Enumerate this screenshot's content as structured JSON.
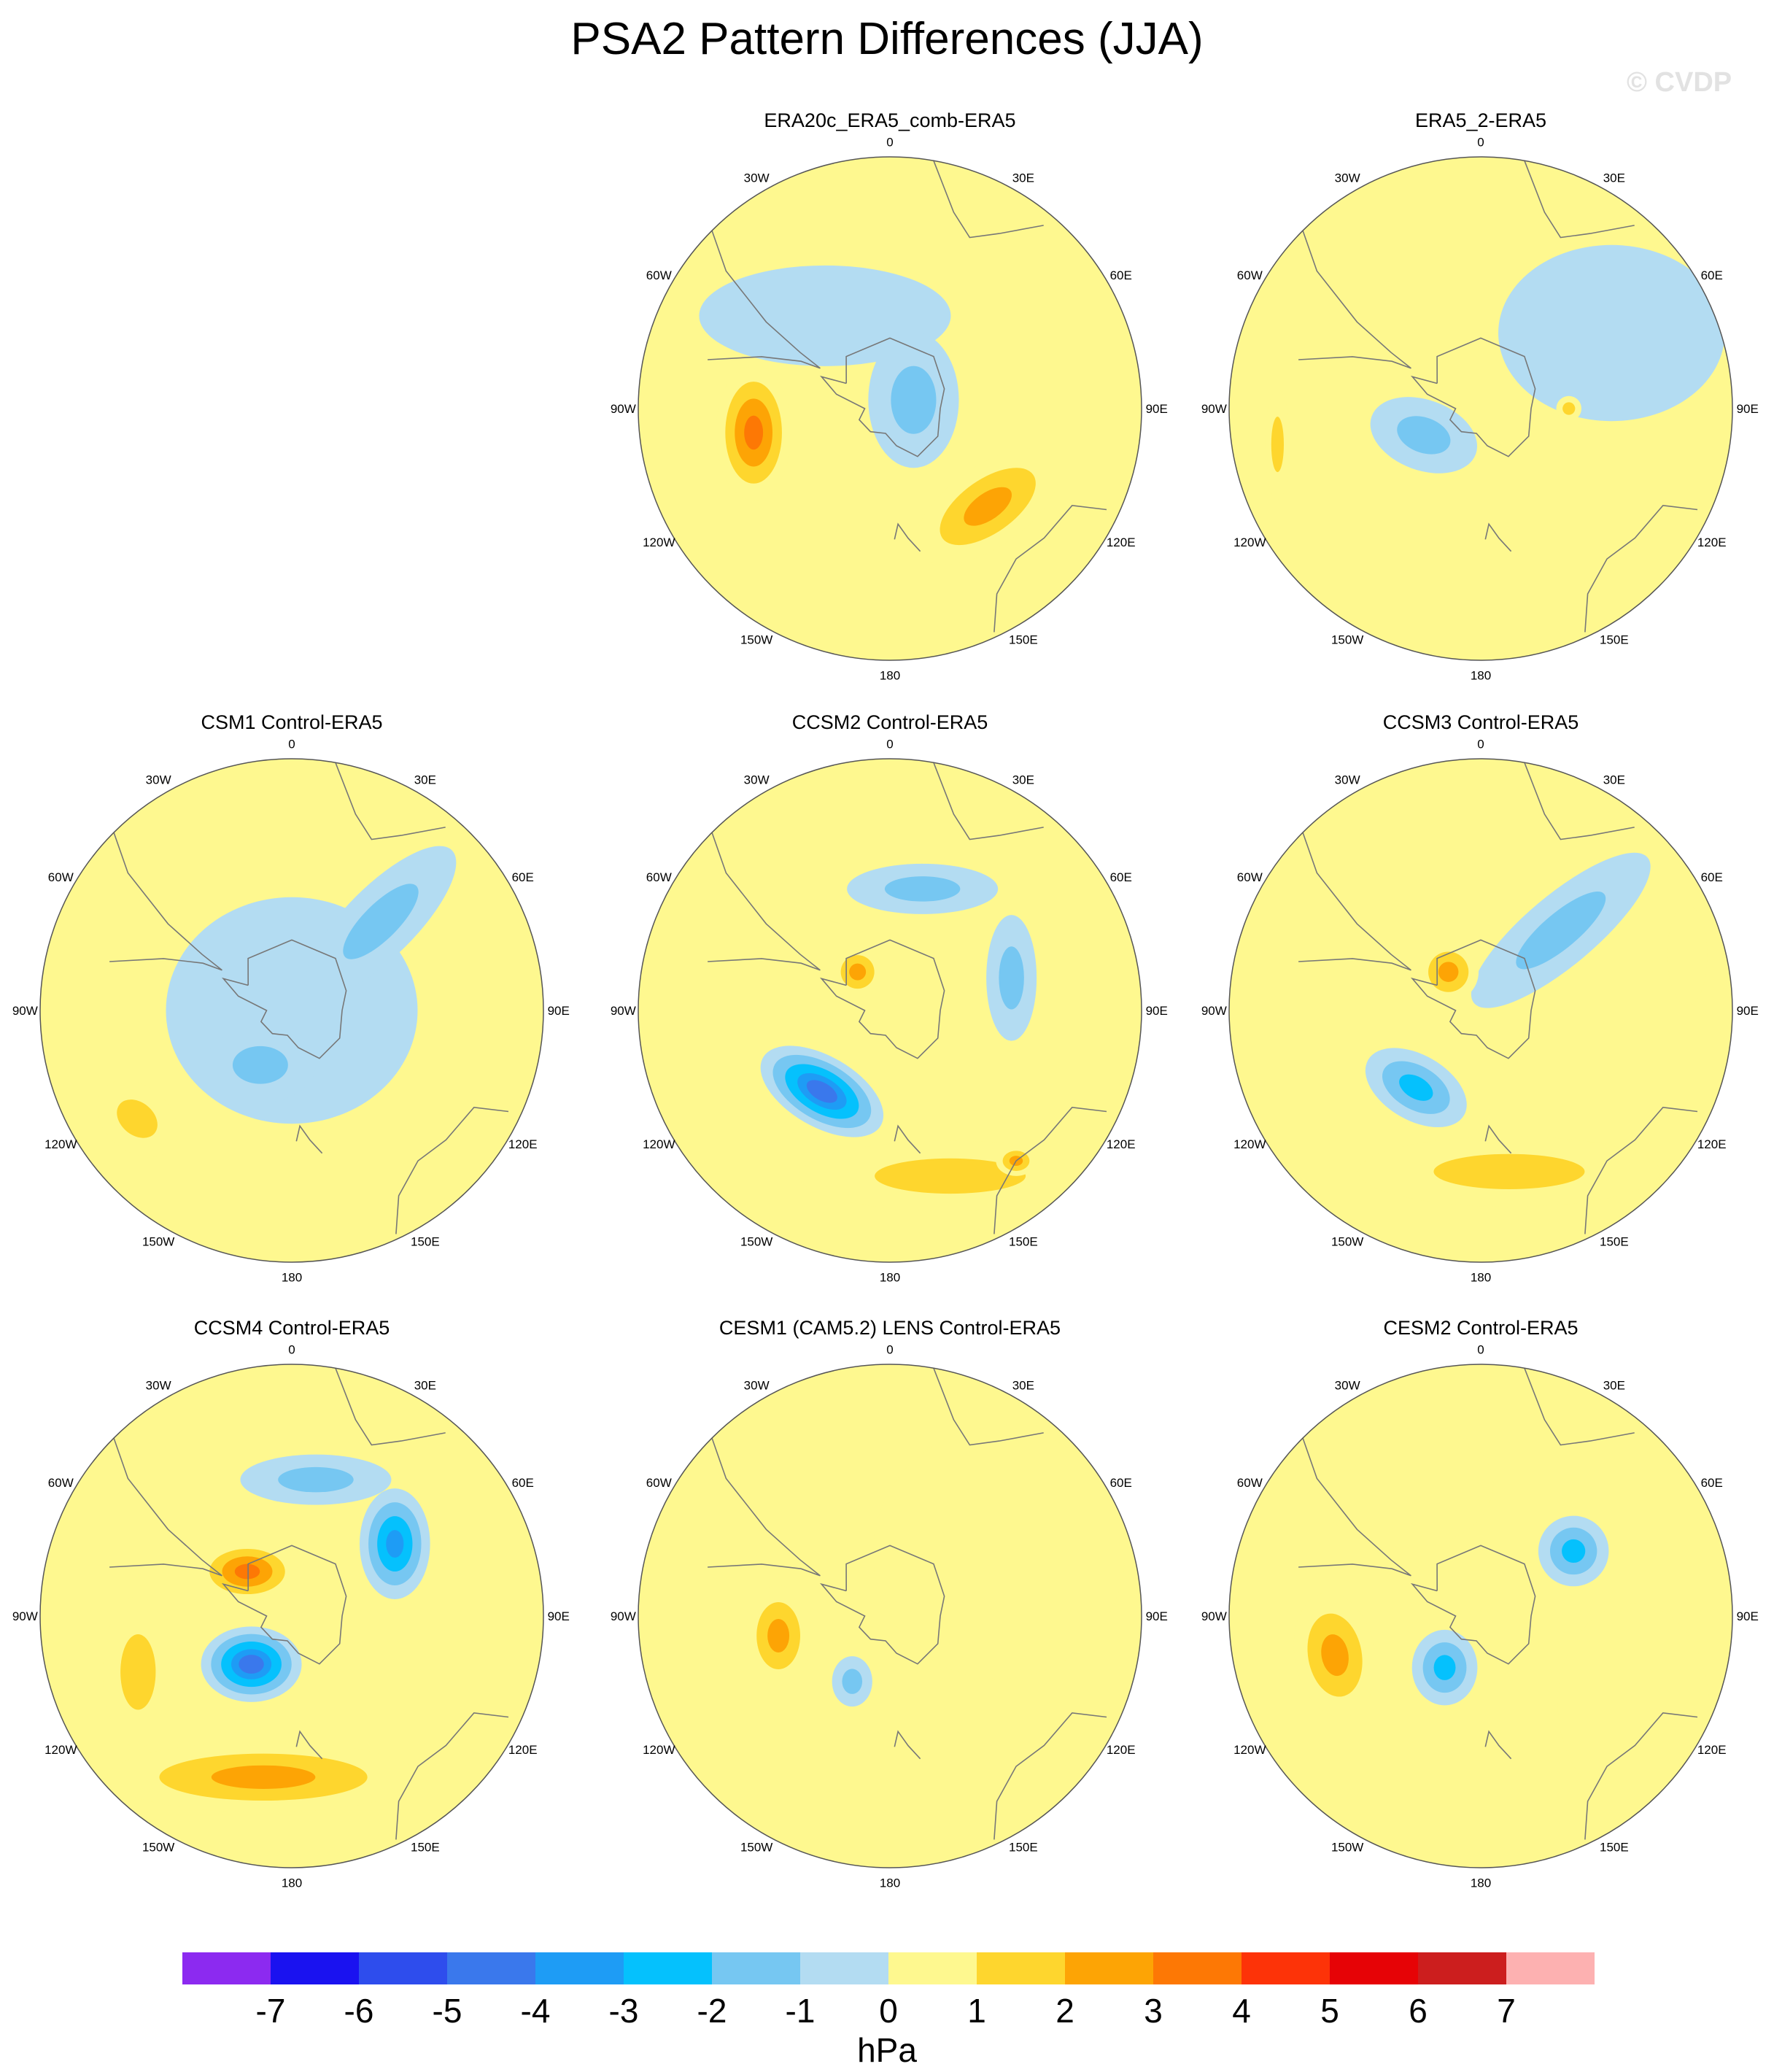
{
  "title": "PSA2 Pattern Differences (JJA)",
  "watermark": "© CVDP",
  "colors": {
    "levels": [
      "#8c2af0",
      "#1a12f0",
      "#2e4ded",
      "#3a78ec",
      "#1e9cf5",
      "#05c1fd",
      "#76c7f2",
      "#b3dcf2",
      "#fef88f",
      "#fed62e",
      "#fda405",
      "#fd7805",
      "#fd3308",
      "#e60306",
      "#cc1e1e",
      "#fdb1b1"
    ],
    "land_outline": "#777777",
    "frame": "#555555"
  },
  "panels": [
    {
      "id": "era20c",
      "title": "ERA20c_ERA5_comb-ERA5",
      "col": 1,
      "row": 0,
      "blobs": [
        {
          "lon": -100,
          "r": 0.55,
          "rx": 0.15,
          "ry": 0.27,
          "rot": 0,
          "v": 3.6
        },
        {
          "lon": 135,
          "r": 0.55,
          "rx": 0.33,
          "ry": 0.16,
          "rot": -35,
          "v": 2.6
        },
        {
          "lon": 70,
          "r": 0.1,
          "rx": 0.18,
          "ry": 0.27,
          "rot": 0,
          "v": -1.6
        },
        {
          "lon": -35,
          "r": 0.45,
          "rx": 0.5,
          "ry": 0.2,
          "rot": 0,
          "v": -1.0
        }
      ]
    },
    {
      "id": "era5_2",
      "title": "ERA5_2-ERA5",
      "col": 2,
      "row": 0,
      "blobs": [
        {
          "lon": -115,
          "r": 0.25,
          "rx": 0.22,
          "ry": 0.14,
          "rot": 20,
          "v": -1.6
        },
        {
          "lon": -100,
          "r": 0.82,
          "rx": 0.05,
          "ry": 0.22,
          "rot": 0,
          "v": 1.4
        },
        {
          "lon": 90,
          "r": 0.35,
          "rx": 0.05,
          "ry": 0.05,
          "rot": 0,
          "v": 1.3
        },
        {
          "lon": 60,
          "r": 0.6,
          "rx": 0.45,
          "ry": 0.35,
          "rot": 0,
          "v": -0.6
        }
      ]
    },
    {
      "id": "csm1",
      "title": "CSM1 Control-ERA5",
      "col": 0,
      "row": 1,
      "blobs": [
        {
          "lon": 45,
          "r": 0.5,
          "rx": 0.4,
          "ry": 0.14,
          "rot": -45,
          "v": -1.5
        },
        {
          "lon": -150,
          "r": 0.25,
          "rx": 0.22,
          "ry": 0.15,
          "rot": 0,
          "v": -1.6
        },
        {
          "lon": -125,
          "r": 0.75,
          "rx": 0.18,
          "ry": 0.13,
          "rot": 40,
          "v": 1.6
        },
        {
          "lon": 0,
          "r": 0.0,
          "rx": 0.5,
          "ry": 0.45,
          "rot": 0,
          "v": -0.5
        }
      ]
    },
    {
      "id": "ccsm2",
      "title": "CCSM2 Control-ERA5",
      "col": 1,
      "row": 1,
      "blobs": [
        {
          "lon": -140,
          "r": 0.42,
          "rx": 0.27,
          "ry": 0.14,
          "rot": 30,
          "v": -4.2
        },
        {
          "lon": 160,
          "r": 0.7,
          "rx": 0.6,
          "ry": 0.14,
          "rot": 0,
          "v": 1.7
        },
        {
          "lon": 140,
          "r": 0.78,
          "rx": 0.08,
          "ry": 0.06,
          "rot": 0,
          "v": 2.8
        },
        {
          "lon": 15,
          "r": 0.5,
          "rx": 0.3,
          "ry": 0.1,
          "rot": 0,
          "v": -1.6
        },
        {
          "lon": 75,
          "r": 0.5,
          "rx": 0.1,
          "ry": 0.25,
          "rot": 0,
          "v": -1.5
        },
        {
          "lon": -40,
          "r": 0.2,
          "rx": 0.1,
          "ry": 0.1,
          "rot": 0,
          "v": 2.2
        }
      ]
    },
    {
      "id": "ccsm3",
      "title": "CCSM3 Control-ERA5",
      "col": 2,
      "row": 1,
      "blobs": [
        {
          "lon": -140,
          "r": 0.4,
          "rx": 0.22,
          "ry": 0.13,
          "rot": 30,
          "v": -2.8
        },
        {
          "lon": 170,
          "r": 0.65,
          "rx": 0.6,
          "ry": 0.14,
          "rot": 0,
          "v": 1.7
        },
        {
          "lon": 45,
          "r": 0.45,
          "rx": 0.45,
          "ry": 0.14,
          "rot": -40,
          "v": -1.5
        },
        {
          "lon": -40,
          "r": 0.2,
          "rx": 0.12,
          "ry": 0.12,
          "rot": 0,
          "v": 2.2
        },
        {
          "lon": 75,
          "r": 0.85,
          "rx": 0.08,
          "ry": 0.2,
          "rot": 0,
          "v": 0.6
        }
      ]
    },
    {
      "id": "ccsm4",
      "title": "CCSM4 Control-ERA5",
      "col": 0,
      "row": 2,
      "blobs": [
        {
          "lon": -140,
          "r": 0.25,
          "rx": 0.2,
          "ry": 0.15,
          "rot": 0,
          "v": -4.8
        },
        {
          "lon": -45,
          "r": 0.25,
          "rx": 0.2,
          "ry": 0.12,
          "rot": 0,
          "v": 3.4
        },
        {
          "lon": 55,
          "r": 0.5,
          "rx": 0.14,
          "ry": 0.22,
          "rot": 0,
          "v": -3.2
        },
        {
          "lon": 10,
          "r": 0.55,
          "rx": 0.3,
          "ry": 0.1,
          "rot": 0,
          "v": -1.6
        },
        {
          "lon": -170,
          "r": 0.65,
          "rx": 0.62,
          "ry": 0.14,
          "rot": 0,
          "v": 2.5
        },
        {
          "lon": -110,
          "r": 0.65,
          "rx": 0.14,
          "ry": 0.3,
          "rot": 0,
          "v": 1.4
        }
      ]
    },
    {
      "id": "cesm1",
      "title": "CESM1 (CAM5.2) LENS Control-ERA5",
      "col": 1,
      "row": 2,
      "blobs": [
        {
          "lon": -100,
          "r": 0.45,
          "rx": 0.13,
          "ry": 0.2,
          "rot": 0,
          "v": 2.6
        },
        {
          "lon": -150,
          "r": 0.3,
          "rx": 0.08,
          "ry": 0.1,
          "rot": 0,
          "v": -1.4
        },
        {
          "lon": 60,
          "r": 0.5,
          "rx": 0.5,
          "ry": 0.5,
          "rot": 0,
          "v": 0.5
        }
      ]
    },
    {
      "id": "cesm2",
      "title": "CESM2 Control-ERA5",
      "col": 2,
      "row": 2,
      "blobs": [
        {
          "lon": -105,
          "r": 0.6,
          "rx": 0.16,
          "ry": 0.25,
          "rot": -10,
          "v": 2.6
        },
        {
          "lon": 55,
          "r": 0.45,
          "rx": 0.14,
          "ry": 0.14,
          "rot": 0,
          "v": -2.8
        },
        {
          "lon": -145,
          "r": 0.25,
          "rx": 0.13,
          "ry": 0.15,
          "rot": 0,
          "v": -2.6
        },
        {
          "lon": 120,
          "r": 0.7,
          "rx": 0.3,
          "ry": 0.4,
          "rot": 0,
          "v": 0.5
        },
        {
          "lon": -30,
          "r": 0.6,
          "rx": 0.35,
          "ry": 0.25,
          "rot": 0,
          "v": 0.5
        }
      ]
    }
  ],
  "lon_labels": [
    {
      "lon": 0,
      "text": "0"
    },
    {
      "lon": 30,
      "text": "30E"
    },
    {
      "lon": 60,
      "text": "60E"
    },
    {
      "lon": 90,
      "text": "90E"
    },
    {
      "lon": 120,
      "text": "120E"
    },
    {
      "lon": 150,
      "text": "150E"
    },
    {
      "lon": 180,
      "text": "180"
    },
    {
      "lon": -150,
      "text": "150W"
    },
    {
      "lon": -120,
      "text": "120W"
    },
    {
      "lon": -90,
      "text": "90W"
    },
    {
      "lon": -60,
      "text": "60W"
    },
    {
      "lon": -30,
      "text": "30W"
    }
  ],
  "colorbar": {
    "labels": [
      "-7",
      "-6",
      "-5",
      "-4",
      "-3",
      "-2",
      "-1",
      "0",
      "1",
      "2",
      "3",
      "4",
      "5",
      "6",
      "7"
    ],
    "unit": "hPa"
  }
}
